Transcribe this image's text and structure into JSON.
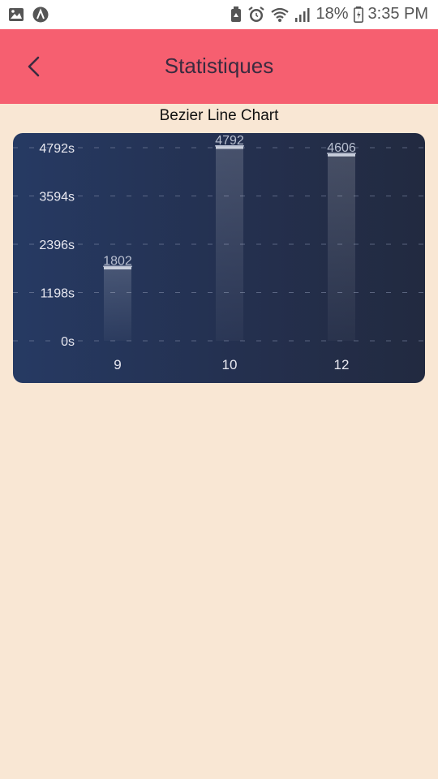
{
  "status_bar": {
    "battery": "18%",
    "time": "3:35 PM",
    "icons": [
      "image-icon",
      "app-a-icon",
      "recycle-icon",
      "alarm-icon",
      "wifi-icon",
      "signal-icon",
      "battery-icon"
    ]
  },
  "app_bar": {
    "back_icon": "chevron-left-icon",
    "title": "Statistiques",
    "color": "#f65f70"
  },
  "chart_data": {
    "type": "bar",
    "title": "Bezier Line Chart",
    "categories": [
      "9",
      "10",
      "12"
    ],
    "values": [
      1802,
      4792,
      4606
    ],
    "value_labels": [
      "1802",
      "4792",
      "4606"
    ],
    "ylim": [
      0,
      4792
    ],
    "yticks": [
      0,
      1198,
      2396,
      3594,
      4792
    ],
    "ytick_labels": [
      "0s",
      "1198s",
      "2396s",
      "3594s",
      "4792s"
    ],
    "grid": "dashed horizontal",
    "background": [
      "#263a63",
      "#222a40"
    ],
    "bar_color": "#ffffff"
  }
}
